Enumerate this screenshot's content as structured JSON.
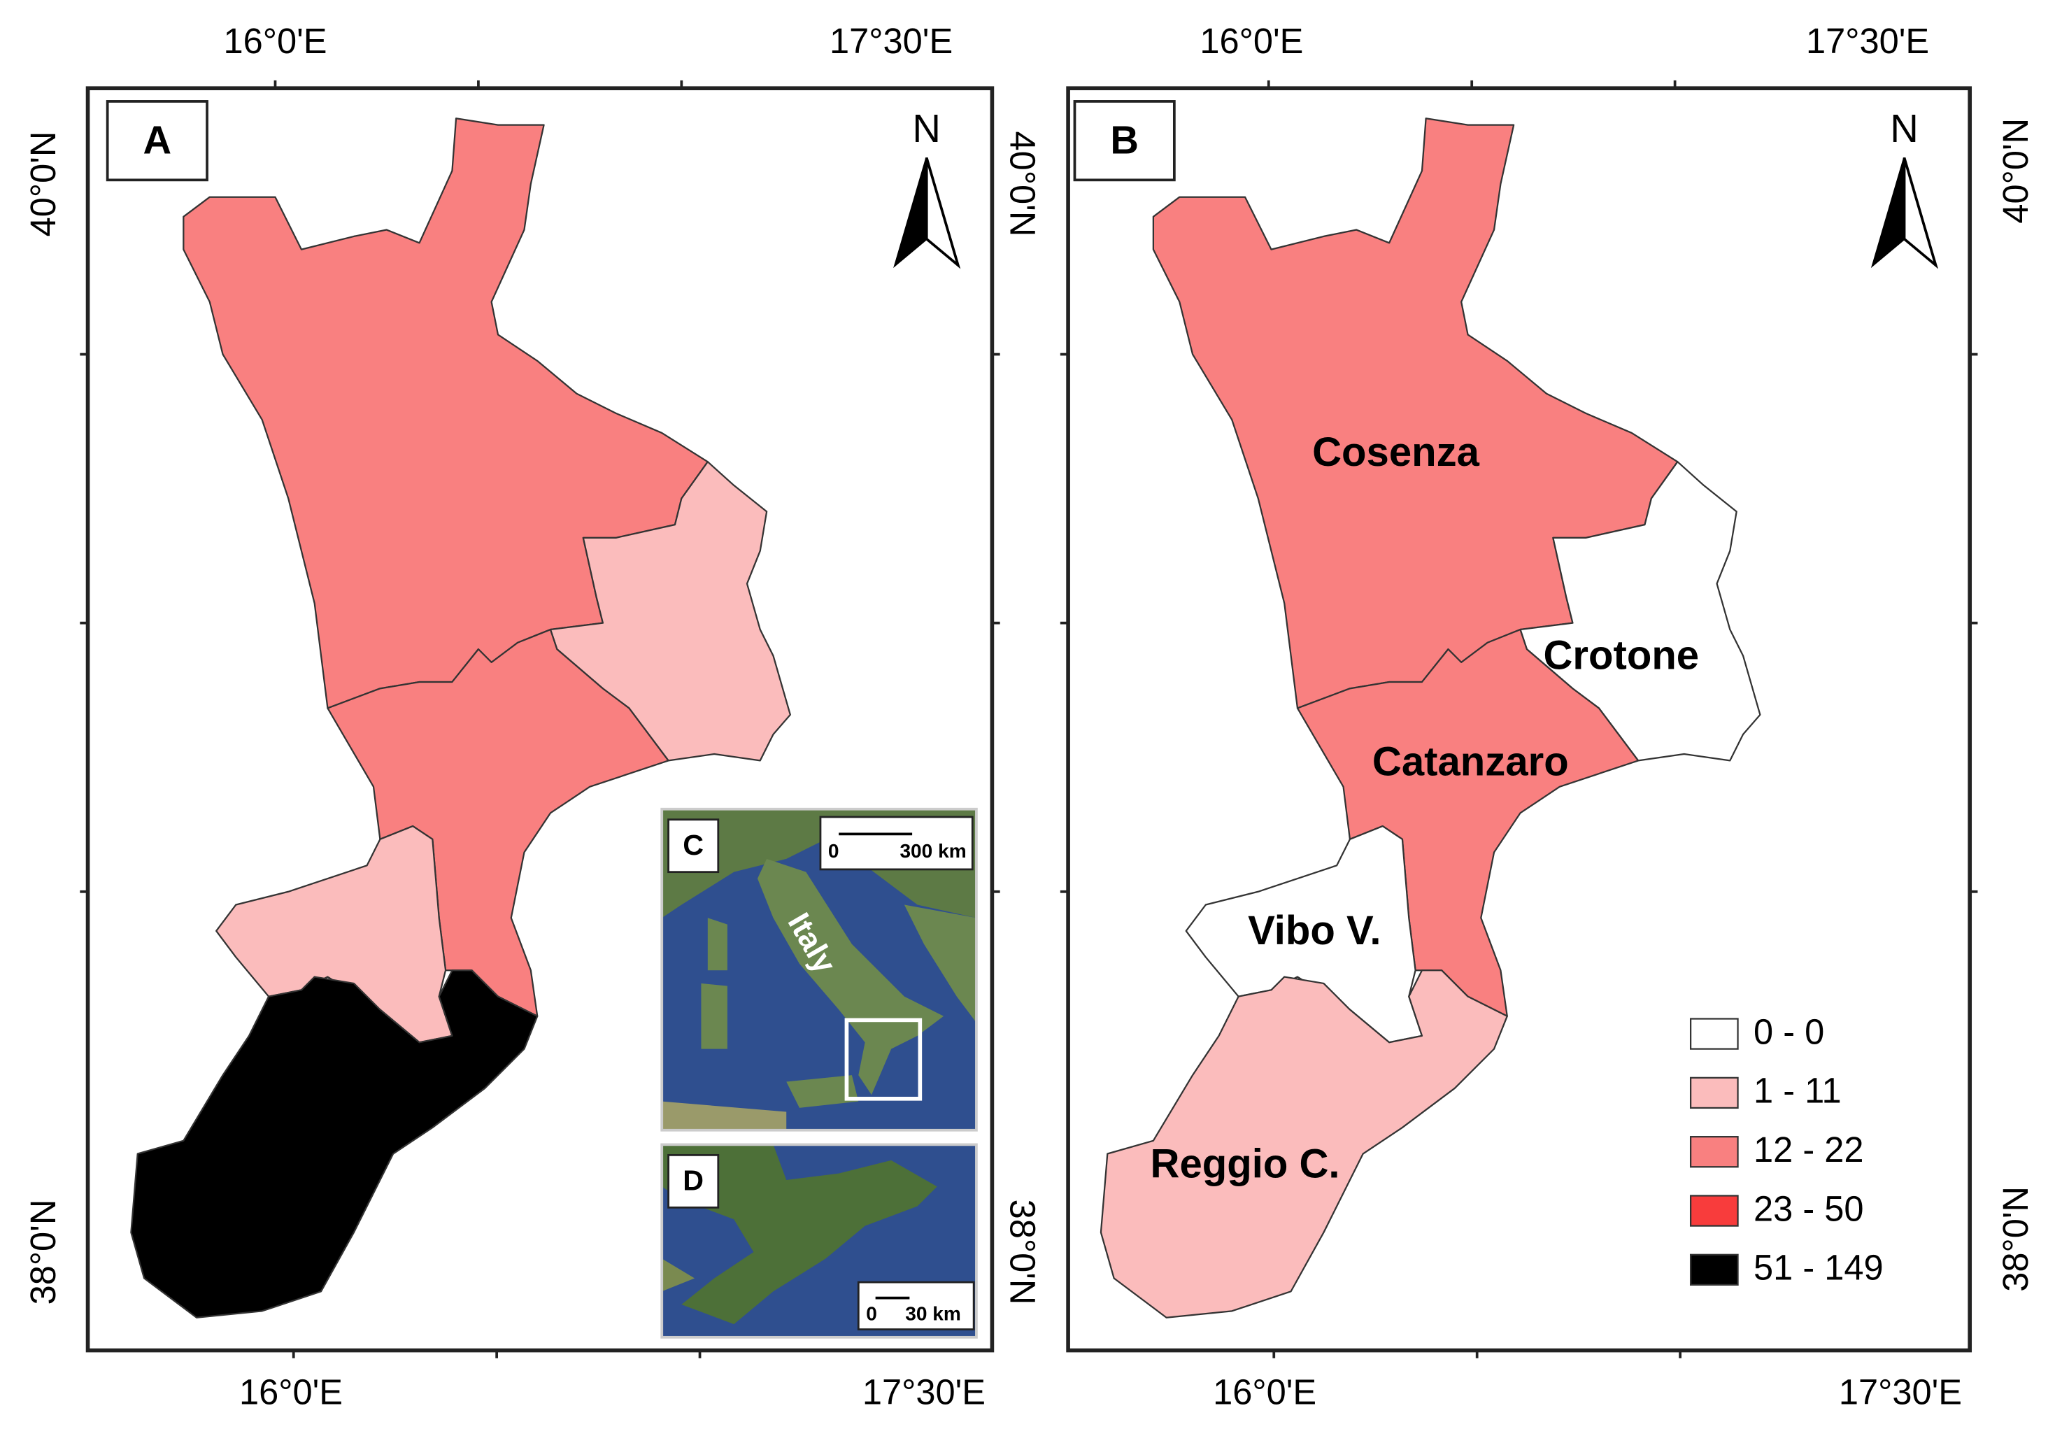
{
  "panels": [
    {
      "letter": "A",
      "north": "N",
      "top_labels": [
        "16°0'E",
        "17°30'E"
      ],
      "bottom_labels": [
        "16°0'E",
        "17°30'E"
      ],
      "left_labels": [
        "40°0'N",
        "38°0'N"
      ],
      "right_labels": [
        "40°0'N",
        "38°0'N"
      ],
      "regions": [
        {
          "color": "#f98080"
        },
        {
          "color": "#fbbcbc"
        },
        {
          "color": "#f98080"
        },
        {
          "color": "#fbbcbc"
        },
        {
          "color": "#000000"
        }
      ]
    },
    {
      "letter": "B",
      "north": "N",
      "top_labels": [
        "16°0'E",
        "17°30'E"
      ],
      "bottom_labels": [
        "16°0'E",
        "17°30'E"
      ],
      "right_labels": [
        "40°0'N",
        "38°0'N"
      ],
      "regions": [
        {
          "name": "Cosenza",
          "color": "#f98080"
        },
        {
          "name": "Crotone",
          "color": "#ffffff"
        },
        {
          "name": "Catanzaro",
          "color": "#f98080"
        },
        {
          "name": "Vibo V.",
          "color": "#ffffff"
        },
        {
          "name": "Reggio C.",
          "color": "#fbbcbc"
        }
      ]
    }
  ],
  "insets": [
    {
      "letter": "C",
      "place": "Italy",
      "scale": [
        "0",
        "300 km"
      ]
    },
    {
      "letter": "D",
      "scale": [
        "0",
        "30 km"
      ]
    }
  ],
  "legend": [
    {
      "label": "0 - 0",
      "color": "#ffffff"
    },
    {
      "label": "1 - 11",
      "color": "#fbbcbc"
    },
    {
      "label": "12 - 22",
      "color": "#f98080"
    },
    {
      "label": "23 - 50",
      "color": "#f83c3c"
    },
    {
      "label": "51 - 149",
      "color": "#000000"
    }
  ]
}
